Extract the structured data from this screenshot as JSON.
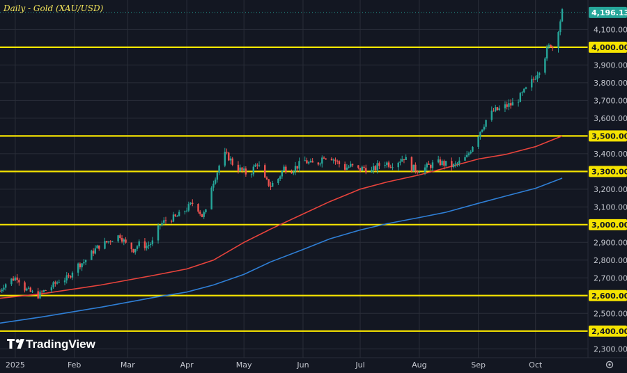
{
  "chart_data": {
    "type": "candlestick",
    "title": "Daily - Gold (XAU/USD)",
    "ylim": [
      2250,
      4235
    ],
    "y_ticks": [
      2300,
      2400,
      2500,
      2600,
      2700,
      2800,
      2900,
      3000,
      3100,
      3200,
      3300,
      3400,
      3500,
      3600,
      3700,
      3800,
      3900,
      4000,
      4100
    ],
    "y_tick_labels": [
      "2,300.000",
      "2,400.000",
      "2,500.000",
      "2,600.000",
      "2,700.000",
      "2,800.000",
      "2,900.000",
      "3,000.000",
      "3,100.000",
      "3,200.000",
      "3,300.000",
      "3,400.000",
      "3,500.000",
      "3,600.000",
      "3,700.000",
      "3,800.000",
      "3,900.000",
      "4,000.000",
      "4,100.000"
    ],
    "x_ticks": [
      {
        "label": "2025",
        "date": "2025-01-01"
      },
      {
        "label": "Feb",
        "date": "2025-02-01"
      },
      {
        "label": "Mar",
        "date": "2025-03-01"
      },
      {
        "label": "Apr",
        "date": "2025-04-01"
      },
      {
        "label": "May",
        "date": "2025-05-01"
      },
      {
        "label": "Jun",
        "date": "2025-06-01"
      },
      {
        "label": "Jul",
        "date": "2025-07-01"
      },
      {
        "label": "Aug",
        "date": "2025-08-01"
      },
      {
        "label": "Sep",
        "date": "2025-09-01"
      },
      {
        "label": "Oct",
        "date": "2025-10-01"
      }
    ],
    "horizontal_levels": [
      {
        "value": 2400,
        "label": "2,400.000"
      },
      {
        "value": 2600,
        "label": "2,600.000"
      },
      {
        "value": 3000,
        "label": "3,000.000"
      },
      {
        "value": 3300,
        "label": "3,300.000"
      },
      {
        "value": 3500,
        "label": "3,500.000"
      },
      {
        "value": 4000,
        "label": "4,000.000"
      }
    ],
    "last_price": {
      "value": 4196.13,
      "label": "4,196.130"
    },
    "series": [
      {
        "kind": "price_path",
        "points": [
          [
            "2024-12-24",
            2625
          ],
          [
            "2024-12-26",
            2660
          ],
          [
            "2024-12-30",
            2690
          ],
          [
            "2025-01-02",
            2705
          ],
          [
            "2025-01-06",
            2640
          ],
          [
            "2025-01-09",
            2620
          ],
          [
            "2025-01-13",
            2600
          ],
          [
            "2025-01-16",
            2625
          ],
          [
            "2025-01-20",
            2650
          ],
          [
            "2025-01-24",
            2685
          ],
          [
            "2025-01-29",
            2700
          ],
          [
            "2025-02-01",
            2760
          ],
          [
            "2025-02-06",
            2790
          ],
          [
            "2025-02-11",
            2850
          ],
          [
            "2025-02-14",
            2880
          ],
          [
            "2025-02-18",
            2900
          ],
          [
            "2025-02-21",
            2920
          ],
          [
            "2025-02-25",
            2940
          ],
          [
            "2025-02-28",
            2890
          ],
          [
            "2025-03-04",
            2860
          ],
          [
            "2025-03-07",
            2890
          ],
          [
            "2025-03-11",
            2880
          ],
          [
            "2025-03-14",
            2900
          ],
          [
            "2025-03-18",
            3000
          ],
          [
            "2025-03-22",
            3030
          ],
          [
            "2025-03-26",
            3040
          ],
          [
            "2025-03-29",
            3060
          ],
          [
            "2025-04-02",
            3100
          ],
          [
            "2025-04-05",
            3130
          ],
          [
            "2025-04-09",
            3050
          ],
          [
            "2025-04-12",
            3080
          ],
          [
            "2025-04-14",
            3220
          ],
          [
            "2025-04-17",
            3300
          ],
          [
            "2025-04-20",
            3400
          ],
          [
            "2025-04-23",
            3380
          ],
          [
            "2025-04-26",
            3330
          ],
          [
            "2025-04-29",
            3310
          ],
          [
            "2025-05-02",
            3290
          ],
          [
            "2025-05-05",
            3300
          ],
          [
            "2025-05-08",
            3350
          ],
          [
            "2025-05-12",
            3250
          ],
          [
            "2025-05-15",
            3220
          ],
          [
            "2025-05-19",
            3260
          ],
          [
            "2025-05-22",
            3320
          ],
          [
            "2025-05-26",
            3310
          ],
          [
            "2025-05-29",
            3330
          ],
          [
            "2025-06-02",
            3360
          ],
          [
            "2025-06-05",
            3340
          ],
          [
            "2025-06-09",
            3350
          ],
          [
            "2025-06-12",
            3390
          ],
          [
            "2025-06-16",
            3380
          ],
          [
            "2025-06-19",
            3350
          ],
          [
            "2025-06-23",
            3320
          ],
          [
            "2025-06-26",
            3330
          ],
          [
            "2025-06-30",
            3310
          ],
          [
            "2025-07-03",
            3320
          ],
          [
            "2025-07-07",
            3300
          ],
          [
            "2025-07-10",
            3330
          ],
          [
            "2025-07-14",
            3350
          ],
          [
            "2025-07-17",
            3340
          ],
          [
            "2025-07-21",
            3360
          ],
          [
            "2025-07-24",
            3380
          ],
          [
            "2025-07-28",
            3320
          ],
          [
            "2025-07-31",
            3310
          ],
          [
            "2025-08-04",
            3320
          ],
          [
            "2025-08-08",
            3340
          ],
          [
            "2025-08-12",
            3350
          ],
          [
            "2025-08-15",
            3340
          ],
          [
            "2025-08-19",
            3330
          ],
          [
            "2025-08-22",
            3350
          ],
          [
            "2025-08-26",
            3380
          ],
          [
            "2025-08-29",
            3450
          ],
          [
            "2025-09-02",
            3530
          ],
          [
            "2025-09-05",
            3590
          ],
          [
            "2025-09-09",
            3640
          ],
          [
            "2025-09-12",
            3650
          ],
          [
            "2025-09-16",
            3670
          ],
          [
            "2025-09-19",
            3680
          ],
          [
            "2025-09-23",
            3720
          ],
          [
            "2025-09-26",
            3760
          ],
          [
            "2025-09-30",
            3820
          ],
          [
            "2025-10-03",
            3880
          ],
          [
            "2025-10-07",
            3980
          ],
          [
            "2025-10-09",
            4020
          ],
          [
            "2025-10-10",
            4000
          ],
          [
            "2025-10-13",
            4110
          ],
          [
            "2025-10-15",
            4196
          ]
        ]
      },
      {
        "kind": "moving_average",
        "color": "#e8433c",
        "points": [
          [
            "2024-12-24",
            2585
          ],
          [
            "2025-01-15",
            2610
          ],
          [
            "2025-02-15",
            2660
          ],
          [
            "2025-03-15",
            2715
          ],
          [
            "2025-04-01",
            2750
          ],
          [
            "2025-04-15",
            2800
          ],
          [
            "2025-05-01",
            2900
          ],
          [
            "2025-05-15",
            2975
          ],
          [
            "2025-06-01",
            3060
          ],
          [
            "2025-06-15",
            3130
          ],
          [
            "2025-07-01",
            3200
          ],
          [
            "2025-07-15",
            3240
          ],
          [
            "2025-08-01",
            3280
          ],
          [
            "2025-08-15",
            3320
          ],
          [
            "2025-09-01",
            3370
          ],
          [
            "2025-09-15",
            3395
          ],
          [
            "2025-10-01",
            3440
          ],
          [
            "2025-10-15",
            3500
          ]
        ]
      },
      {
        "kind": "moving_average",
        "color": "#2f7fd6",
        "points": [
          [
            "2024-12-24",
            2445
          ],
          [
            "2025-01-15",
            2480
          ],
          [
            "2025-02-15",
            2535
          ],
          [
            "2025-03-15",
            2590
          ],
          [
            "2025-04-01",
            2620
          ],
          [
            "2025-04-15",
            2660
          ],
          [
            "2025-05-01",
            2720
          ],
          [
            "2025-05-15",
            2790
          ],
          [
            "2025-06-01",
            2860
          ],
          [
            "2025-06-15",
            2920
          ],
          [
            "2025-07-01",
            2970
          ],
          [
            "2025-07-15",
            3005
          ],
          [
            "2025-08-01",
            3040
          ],
          [
            "2025-08-15",
            3070
          ],
          [
            "2025-09-01",
            3120
          ],
          [
            "2025-09-15",
            3160
          ],
          [
            "2025-10-01",
            3205
          ],
          [
            "2025-10-15",
            3262
          ]
        ]
      }
    ]
  },
  "colors": {
    "background": "#131722",
    "grid": "#2a2e39",
    "level_line": "#f5e300",
    "candle_up": "#26a69a",
    "candle_down": "#ef5350",
    "last_price_badge": "#26a69a",
    "level_badge": "#f5e300"
  },
  "branding": {
    "logo_text": "TradingView"
  },
  "icons": {
    "settings": "gear-icon",
    "logo": "tradingview-logo-icon"
  }
}
